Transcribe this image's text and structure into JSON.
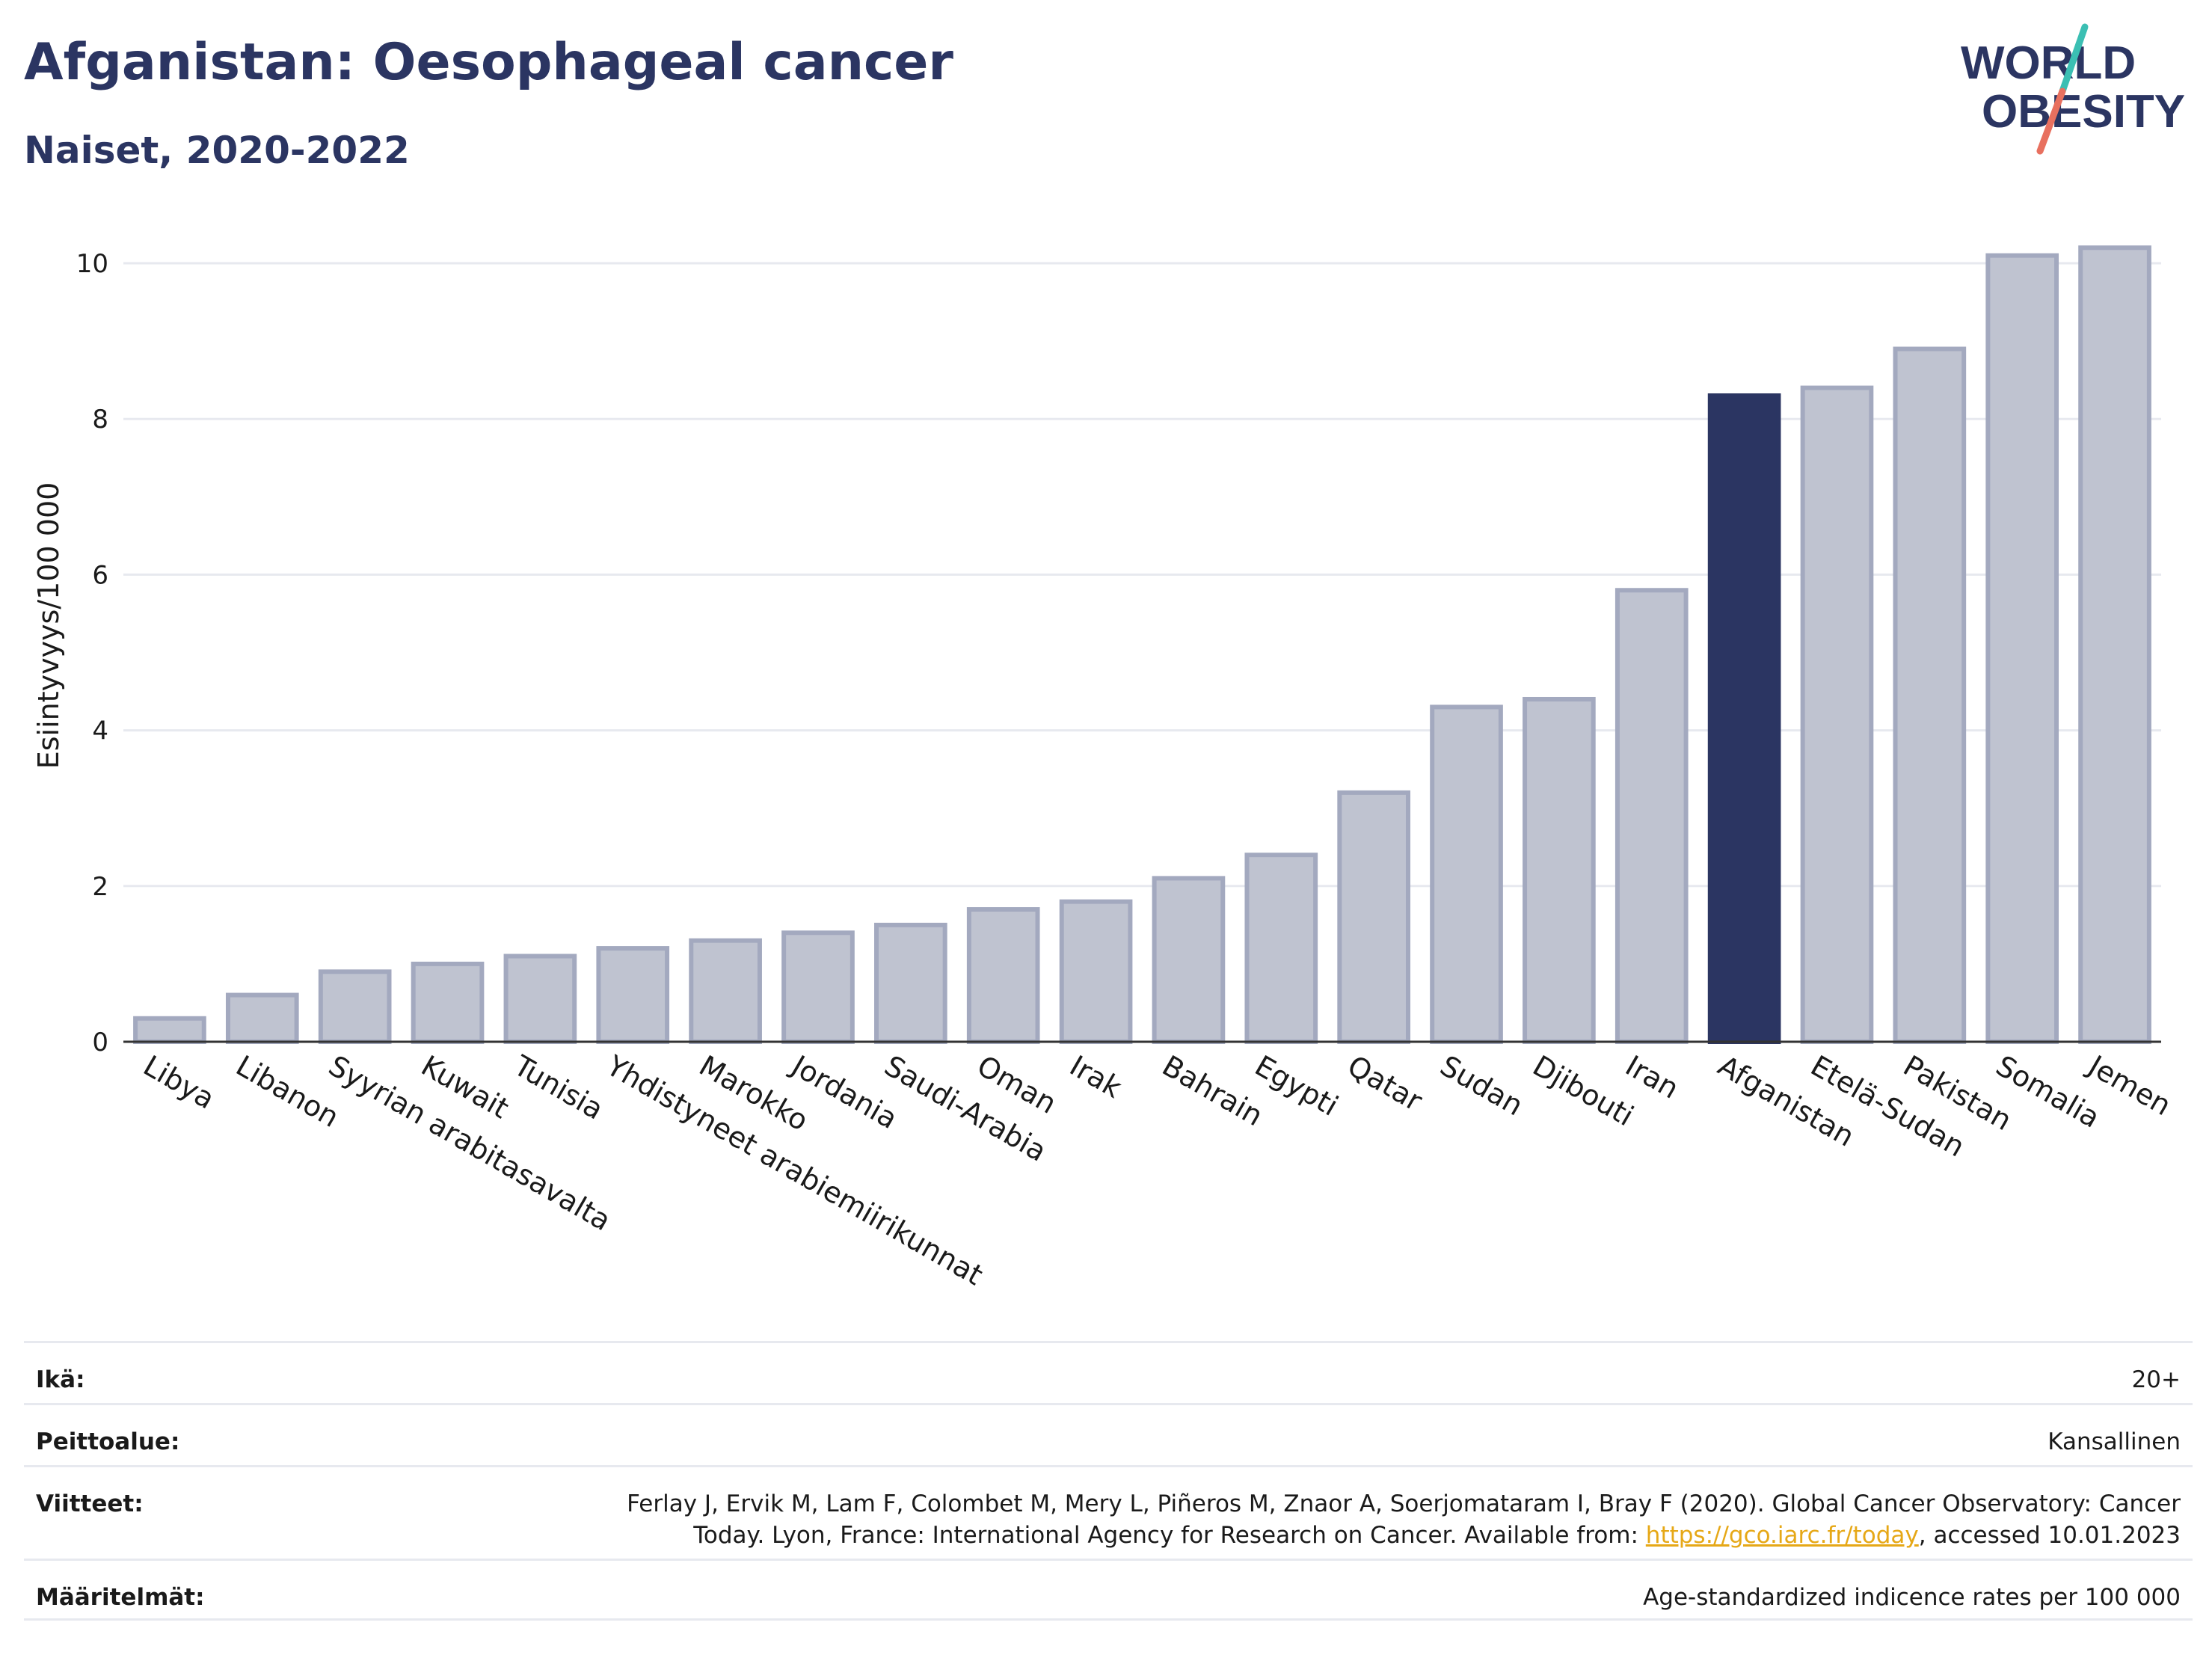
{
  "header": {
    "title": "Afganistan: Oesophageal cancer",
    "subtitle": "Naiset, 2020-2022"
  },
  "logo": {
    "line1": "WORLD",
    "line2": "OBESITY",
    "text_color": "#2b3562",
    "slash_colors": [
      "#3bbfb3",
      "#e8705f"
    ]
  },
  "colors": {
    "highlight": "#2b3562",
    "bar_fill": "#bfc3d0",
    "bar_stroke": "#a3a9bf",
    "grid": "#e7e9ef"
  },
  "chart_data": {
    "type": "bar",
    "ylabel": "Esiintyvyys/100 000",
    "ylim": [
      0,
      10.5
    ],
    "yticks": [
      0,
      2,
      4,
      6,
      8,
      10
    ],
    "grid": true,
    "highlight_category": "Afganistan",
    "categories": [
      "Libya",
      "Libanon",
      "Syyrian arabitasavalta",
      "Kuwait",
      "Tunisia",
      "Yhdistyneet arabiemiirikunnat",
      "Marokko",
      "Jordania",
      "Saudi-Arabia",
      "Oman",
      "Irak",
      "Bahrain",
      "Egypti",
      "Qatar",
      "Sudan",
      "Djibouti",
      "Iran",
      "Afganistan",
      "Etelä-Sudan",
      "Pakistan",
      "Somalia",
      "Jemen"
    ],
    "values": [
      0.3,
      0.6,
      0.9,
      1.0,
      1.1,
      1.2,
      1.3,
      1.4,
      1.5,
      1.7,
      1.8,
      2.1,
      2.4,
      3.2,
      4.3,
      4.4,
      5.8,
      8.3,
      8.4,
      8.9,
      10.1,
      10.2
    ]
  },
  "meta": [
    {
      "label": "Ikä:",
      "value": "20+"
    },
    {
      "label": "Peittoalue:",
      "value": "Kansallinen"
    },
    {
      "label": "Viitteet:",
      "value_lines": [
        "Ferlay J, Ervik M, Lam F, Colombet M, Mery L, Piñeros M, Znaor A, Soerjomataram I, Bray F (2020). Global Cancer Observatory: Cancer"
      ],
      "value_line2_pre": "Today. Lyon, France: International Agency for Research on Cancer. Available from: ",
      "value_link": "https://gco.iarc.fr/today",
      "value_line2_post": ", accessed 10.01.2023"
    },
    {
      "label": "Määritelmät:",
      "value": "Age-standardized indicence rates per 100 000"
    }
  ]
}
